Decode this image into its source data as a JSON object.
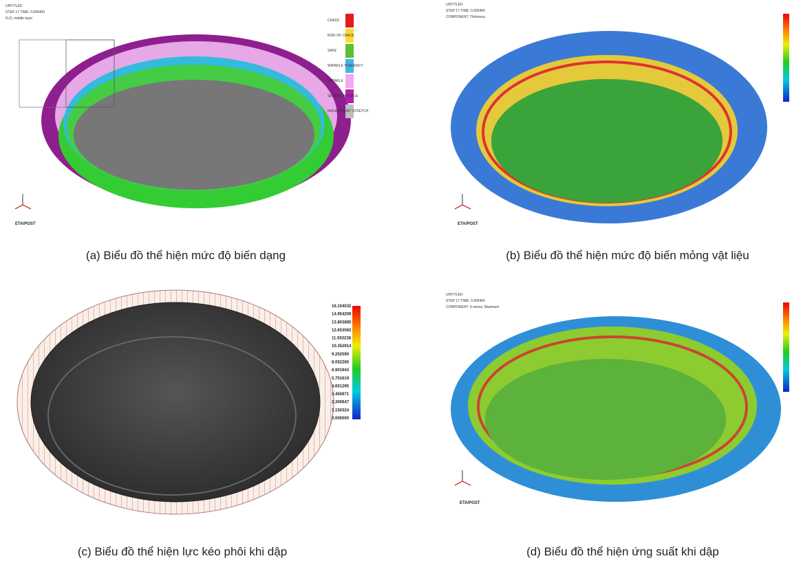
{
  "panel_a": {
    "header": [
      "UNTITLED",
      "STEP 17  TIME: 0.009400",
      "FLD, middle layer"
    ],
    "legend": [
      "CRACK",
      "RISK OF CRACK",
      "SAFE",
      "WRINKLE TENDENCY",
      "WRINKLE",
      "SEVERE WRINKLE",
      "INSUFFICIENT STRETCH"
    ],
    "footer": "ETA/POST",
    "caption": "(a) Biểu đồ thể hiện mức độ biến dạng"
  },
  "panel_b": {
    "header": [
      "UNTITLED",
      "STEP 17  TIME: 0.009400",
      "COMPONENT: Thickness"
    ],
    "footer": "ETA/POST",
    "caption": "(b) Biểu đồ thể hiện mức độ biến mỏng vật liệu"
  },
  "panel_c": {
    "colorbar": [
      "16.104532",
      "14.954209",
      "13.803885",
      "12.653562",
      "11.503238",
      "10.352914",
      "9.202590",
      "8.052266",
      "6.901943",
      "5.751619",
      "4.601295",
      "3.450971",
      "2.300647",
      "1.150324",
      "0.000000"
    ],
    "caption": "(c) Biểu đồ thể hiện lực kéo phôi khi dập"
  },
  "panel_d": {
    "header": [
      "UNTITLED",
      "STEP 17  TIME: 0.009400",
      "COMPONENT: X-stress, Maximum"
    ],
    "footer": "ETA/POST",
    "caption": "(d) Biểu đồ thể hiện ứng suất khi dập"
  }
}
